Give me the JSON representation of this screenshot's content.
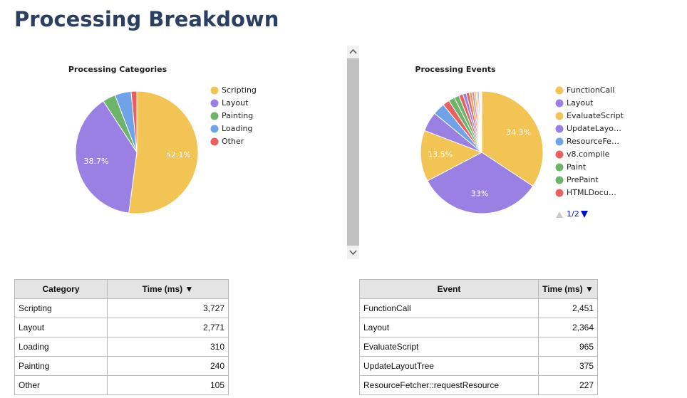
{
  "title": "Processing Breakdown",
  "chart_data": [
    {
      "type": "pie",
      "title": "Processing Categories",
      "categories": [
        "Scripting",
        "Layout",
        "Painting",
        "Loading",
        "Other"
      ],
      "values": [
        52.1,
        38.7,
        3.4,
        4.3,
        1.5
      ],
      "value_labels": [
        "52.1%",
        "38.7%",
        null,
        null,
        null
      ],
      "colors": [
        "#f1c453",
        "#9b80e4",
        "#6db36a",
        "#6fa2e6",
        "#e8605f"
      ]
    },
    {
      "type": "pie",
      "title": "Processing Events",
      "categories": [
        "FunctionCall",
        "Layout",
        "EvaluateScript",
        "UpdateLayo…",
        "ResourceFe…",
        "v8.compile",
        "Paint",
        "PrePaint",
        "HTMLDocu…",
        null,
        null,
        null,
        null,
        null,
        null,
        null,
        null,
        null,
        null
      ],
      "values": [
        34.3,
        33,
        13.5,
        5.2,
        3.2,
        1.8,
        1.6,
        1.3,
        1.1,
        0.9,
        0.8,
        0.7,
        0.6,
        0.5,
        0.4,
        0.4,
        0.3,
        0.2,
        0.2
      ],
      "value_labels": [
        "34.3%",
        "33%",
        "13.5%",
        null,
        null,
        null,
        null,
        null,
        null,
        null,
        null,
        null,
        null,
        null,
        null,
        null,
        null,
        null,
        null
      ],
      "colors": [
        "#f1c453",
        "#9b80e4",
        "#f1c453",
        "#9b80e4",
        "#6fa2e6",
        "#e8605f",
        "#6db36a",
        "#6db36a",
        "#e8605f",
        "#9b80e4",
        "#e8605f",
        "#f0a050",
        "#e880b0",
        "#f1c453",
        "#f3b0a0",
        "#c8a0e8",
        "#e8d0a0",
        "#d0d0d0",
        "#e0c0c0"
      ],
      "legend_page": "1/2"
    }
  ],
  "tables": [
    {
      "columns": [
        "Category",
        "Time (ms) ▼"
      ],
      "rows": [
        [
          "Scripting",
          "3,727"
        ],
        [
          "Layout",
          "2,771"
        ],
        [
          "Loading",
          "310"
        ],
        [
          "Painting",
          "240"
        ],
        [
          "Other",
          "105"
        ]
      ]
    },
    {
      "columns": [
        "Event",
        "Time (ms) ▼"
      ],
      "rows": [
        [
          "FunctionCall",
          "2,451"
        ],
        [
          "Layout",
          "2,364"
        ],
        [
          "EvaluateScript",
          "965"
        ],
        [
          "UpdateLayoutTree",
          "375"
        ],
        [
          "ResourceFetcher::requestResource",
          "227"
        ]
      ]
    }
  ]
}
